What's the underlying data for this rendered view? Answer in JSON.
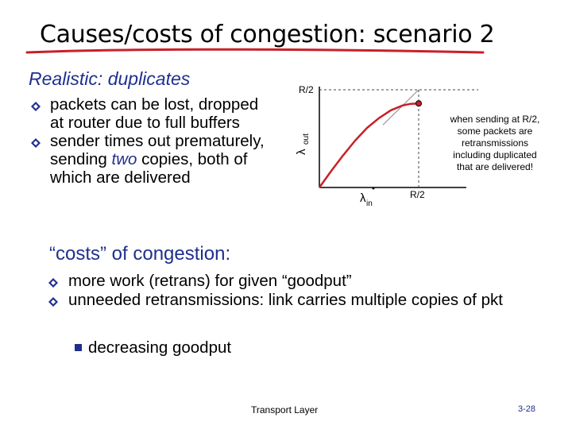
{
  "slide": {
    "title": "Causes/costs of congestion: scenario 2",
    "subtitle": "Realistic: duplicates",
    "top_bullets": [
      {
        "before": "packets can be lost, dropped at router due  to full buffers",
        "emph": "",
        "after": ""
      },
      {
        "before": "sender times out prematurely, sending ",
        "emph": "two",
        "after": " copies, both of which are delivered"
      }
    ],
    "costs_heading": "“costs” of congestion:",
    "bottom_bullets": [
      "more work (retrans) for given “goodput”",
      "unneeded retransmissions: link carries multiple copies of pkt"
    ],
    "sub_bullet": "decreasing goodput",
    "footer_center": "Transport Layer",
    "footer_page": "3-28"
  },
  "colors": {
    "accent_text": "#1f2f8f",
    "underline": "#c8202a",
    "curve": "#c8202a",
    "bullet_marker": "#1f2f8f"
  },
  "chart_data": {
    "type": "line",
    "y_top_label": "R/2",
    "x_right_label": "R/2",
    "ylabel": "λ",
    "ylabel_sub": "out",
    "xlabel": "λ",
    "xlabel_sub": "in",
    "annotation": [
      "when sending at R/2,",
      "some packets are",
      "retransmissions",
      "including duplicated",
      "that are delivered!"
    ],
    "xlim": [
      0,
      0.5
    ],
    "ylim": [
      0,
      0.5
    ],
    "series": [
      {
        "x": [
          0,
          0.06,
          0.12,
          0.18,
          0.24,
          0.3,
          0.36,
          0.42,
          0.46,
          0.5
        ],
        "values": [
          0,
          0.085,
          0.165,
          0.24,
          0.305,
          0.355,
          0.395,
          0.42,
          0.428,
          0.43
        ]
      }
    ],
    "reference_line": {
      "x": [
        0.32,
        0.5
      ],
      "values": [
        0.32,
        0.5
      ]
    },
    "marker_point": {
      "x": 0.5,
      "y": 0.43
    },
    "grid": false
  }
}
